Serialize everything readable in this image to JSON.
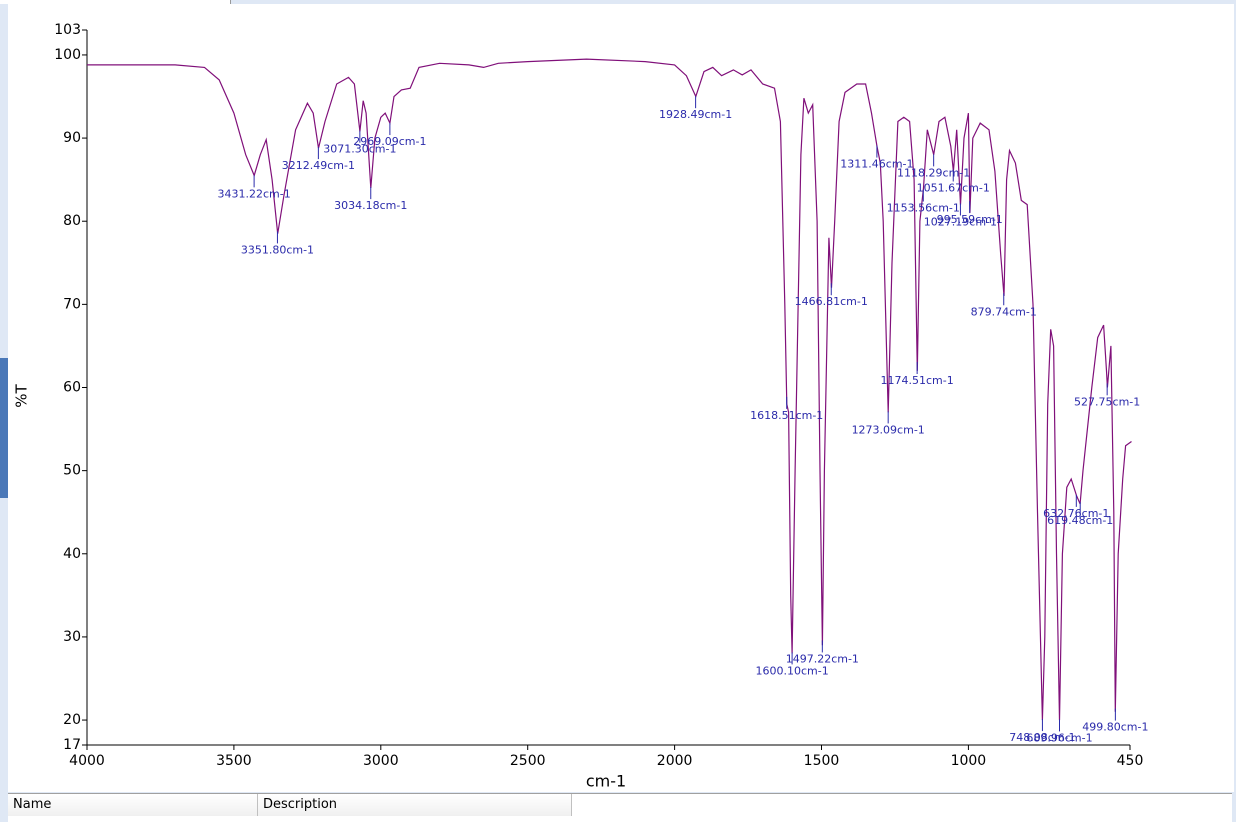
{
  "chart_data": {
    "type": "line",
    "xlabel": "cm-1",
    "ylabel": "%T",
    "color": "#80107a",
    "xlim": [
      4000,
      450
    ],
    "xticks": [
      4000,
      3500,
      3000,
      2500,
      2000,
      1500,
      1000,
      450
    ],
    "ylim": [
      17,
      103
    ],
    "yticks": [
      17,
      20,
      30,
      40,
      50,
      60,
      70,
      80,
      90,
      100,
      103
    ],
    "x": [
      4000,
      3700,
      3600,
      3550,
      3500,
      3460,
      3431,
      3410,
      3390,
      3370,
      3351,
      3330,
      3290,
      3250,
      3230,
      3212,
      3190,
      3150,
      3110,
      3090,
      3071,
      3060,
      3050,
      3034,
      3020,
      3000,
      2985,
      2969,
      2955,
      2930,
      2900,
      2870,
      2800,
      2700,
      2650,
      2600,
      2500,
      2300,
      2100,
      2000,
      1960,
      1928,
      1900,
      1870,
      1840,
      1800,
      1770,
      1740,
      1700,
      1660,
      1640,
      1625,
      1618,
      1612,
      1605,
      1600,
      1590,
      1570,
      1560,
      1545,
      1530,
      1515,
      1505,
      1497,
      1490,
      1475,
      1466,
      1455,
      1440,
      1420,
      1380,
      1350,
      1330,
      1311,
      1300,
      1290,
      1273,
      1260,
      1240,
      1220,
      1200,
      1185,
      1174,
      1165,
      1153,
      1140,
      1118,
      1100,
      1080,
      1060,
      1051,
      1040,
      1027,
      1015,
      1000,
      995,
      985,
      960,
      930,
      910,
      890,
      879,
      870,
      860,
      840,
      820,
      800,
      780,
      765,
      748,
      740,
      730,
      720,
      710,
      700,
      690,
      680,
      665,
      650,
      632,
      620,
      610,
      580,
      560,
      540,
      530,
      527,
      515,
      505,
      500,
      490,
      475,
      465,
      445
    ],
    "values": [
      98.8,
      98.8,
      98.5,
      97,
      93,
      88,
      85.5,
      88,
      89.8,
      85,
      78.5,
      83,
      91,
      94.2,
      93,
      88.8,
      92,
      96.5,
      97.3,
      96.5,
      90.8,
      94.5,
      93,
      84,
      90,
      92.5,
      93,
      91.8,
      95,
      95.8,
      96,
      98.5,
      99,
      98.8,
      98.5,
      99,
      99.2,
      99.5,
      99.2,
      98.8,
      97.5,
      95,
      98,
      98.5,
      97.5,
      98.2,
      97.6,
      98.2,
      96.5,
      96,
      92,
      70,
      58,
      57,
      35,
      28,
      50,
      88,
      94.8,
      93,
      94,
      80,
      50,
      29,
      50,
      78,
      72,
      80,
      92,
      95.5,
      96.5,
      96.5,
      93,
      89,
      87,
      80,
      57,
      75,
      92,
      92.5,
      92,
      85,
      62,
      80,
      84,
      91,
      88,
      92,
      92.5,
      89,
      86,
      91,
      82,
      90,
      93,
      81,
      90,
      91.8,
      91,
      86,
      76,
      71,
      85,
      88.5,
      87,
      82.5,
      82,
      70,
      45,
      20,
      30,
      58,
      67,
      65,
      40,
      20,
      40,
      48,
      49,
      47,
      46,
      50,
      60,
      66,
      67.5,
      62,
      60,
      65,
      45,
      21,
      40,
      49,
      53,
      53.5
    ],
    "annotations": [
      {
        "value": 3431.22,
        "label": "3431.22cm-1"
      },
      {
        "value": 3351.8,
        "label": "3351.80cm-1"
      },
      {
        "value": 3212.49,
        "label": "3212.49cm-1"
      },
      {
        "value": 3071.3,
        "label": "3071.30cm-1"
      },
      {
        "value": 3034.18,
        "label": "3034.18cm-1"
      },
      {
        "value": 2969.09,
        "label": "2969.09cm-1"
      },
      {
        "value": 1928.49,
        "label": "1928.49cm-1"
      },
      {
        "value": 1618.51,
        "label": "1618.51cm-1"
      },
      {
        "value": 1600.1,
        "label": "1600.10cm-1"
      },
      {
        "value": 1497.22,
        "label": "1497.22cm-1"
      },
      {
        "value": 1466.81,
        "label": "1466.81cm-1"
      },
      {
        "value": 1311.46,
        "label": "1311.46cm-1"
      },
      {
        "value": 1273.09,
        "label": "1273.09cm-1"
      },
      {
        "value": 1174.51,
        "label": "1174.51cm-1"
      },
      {
        "value": 1153.56,
        "label": "1153.56cm-1"
      },
      {
        "value": 1118.29,
        "label": "1118.29cm-1"
      },
      {
        "value": 1051.67,
        "label": "1051.67cm-1"
      },
      {
        "value": 1027.19,
        "label": "1027.19cm-1"
      },
      {
        "value": 995.59,
        "label": "995.59cm-1"
      },
      {
        "value": 879.74,
        "label": "879.74cm-1"
      },
      {
        "value": 748.08,
        "label": "748.08cm-1"
      },
      {
        "value": 689.96,
        "label": "689.96cm-1"
      },
      {
        "value": 632.76,
        "label": "632.76cm-1"
      },
      {
        "value": 619.48,
        "label": "619.48cm-1"
      },
      {
        "value": 527.75,
        "label": "527.75cm-1"
      },
      {
        "value": 499.8,
        "label": "499.80cm-1"
      }
    ]
  },
  "ui": {
    "columns": [
      "Name",
      "Description"
    ]
  }
}
